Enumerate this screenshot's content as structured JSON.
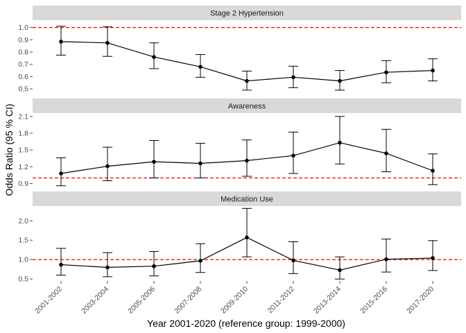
{
  "chart_data": {
    "type": "line",
    "x_axis_label": "Year 2001-2020 (reference group: 1999-2000)",
    "y_axis_label": "Odds Ratio (95 % CI)",
    "categories": [
      "2001-2002",
      "2003-2004",
      "2005-2006",
      "2007-2008",
      "2009-2010",
      "2011-2012",
      "2013-2014",
      "2015-2016",
      "2017-2020"
    ],
    "reference_line": {
      "value": 1.0,
      "color": "#ff0000",
      "style": "dashed"
    },
    "colors": {
      "series": "#000000",
      "strip": "#d9d9d9",
      "tick": "#4d4d4d"
    },
    "panels": [
      {
        "title": "Stage 2 Hypertension",
        "ylim": [
          0.45,
          1.06
        ],
        "yticks": [
          0.5,
          0.6,
          0.7,
          0.8,
          0.9,
          1.0
        ],
        "ytick_labels": [
          "0.5",
          "0.6",
          "0.7",
          "0.8",
          "0.9",
          "1.0"
        ],
        "values": [
          0.885,
          0.875,
          0.76,
          0.68,
          0.565,
          0.595,
          0.565,
          0.635,
          0.65
        ],
        "lower": [
          0.775,
          0.765,
          0.665,
          0.595,
          0.49,
          0.51,
          0.49,
          0.55,
          0.565
        ],
        "upper": [
          1.01,
          1.005,
          0.875,
          0.78,
          0.645,
          0.685,
          0.65,
          0.73,
          0.745
        ]
      },
      {
        "title": "Awareness",
        "ylim": [
          0.82,
          2.16
        ],
        "yticks": [
          0.9,
          1.2,
          1.5,
          1.8,
          2.1
        ],
        "ytick_labels": [
          "0.9",
          "1.2",
          "1.5",
          "1.8",
          "2.1"
        ],
        "values": [
          1.08,
          1.21,
          1.29,
          1.26,
          1.31,
          1.4,
          1.63,
          1.44,
          1.13
        ],
        "lower": [
          0.86,
          0.95,
          1.0,
          1.0,
          1.03,
          1.08,
          1.25,
          1.11,
          0.88
        ],
        "upper": [
          1.36,
          1.55,
          1.67,
          1.62,
          1.68,
          1.82,
          2.1,
          1.87,
          1.43
        ]
      },
      {
        "title": "Medication Use",
        "ylim": [
          0.45,
          2.38
        ],
        "yticks": [
          0.5,
          1.0,
          1.5,
          2.0
        ],
        "ytick_labels": [
          "0.5",
          "1.0",
          "1.5",
          "2.0"
        ],
        "values": [
          0.87,
          0.8,
          0.83,
          0.97,
          1.57,
          0.98,
          0.73,
          1.01,
          1.04
        ],
        "lower": [
          0.6,
          0.56,
          0.58,
          0.67,
          1.07,
          0.64,
          0.5,
          0.68,
          0.72
        ],
        "upper": [
          1.29,
          1.18,
          1.21,
          1.41,
          2.32,
          1.46,
          1.07,
          1.53,
          1.49
        ]
      }
    ]
  }
}
